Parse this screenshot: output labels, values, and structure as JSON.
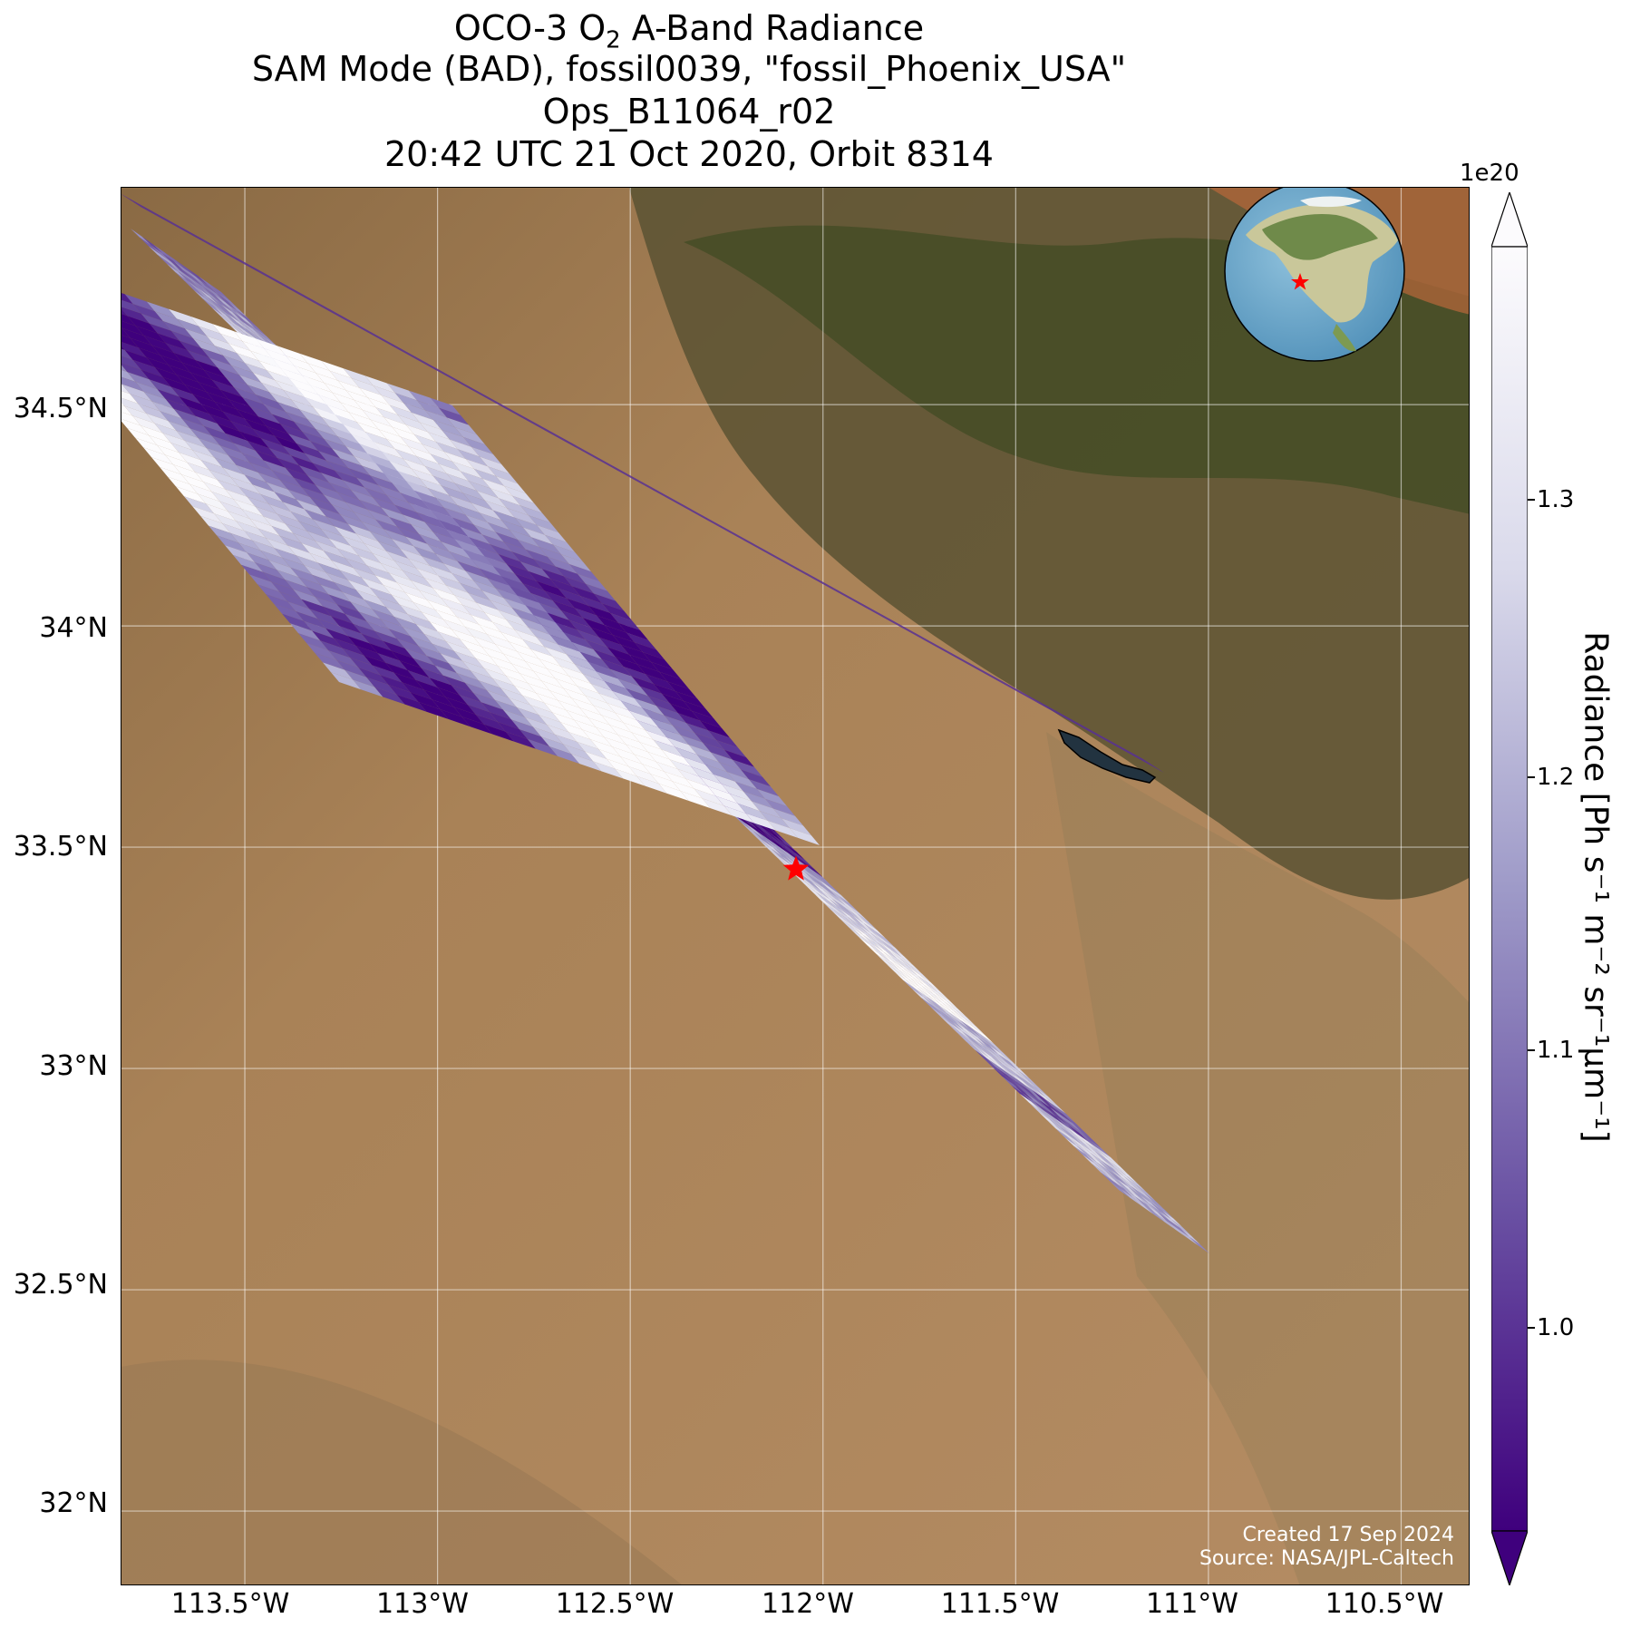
{
  "title": {
    "line1_prefix": "OCO-3 O",
    "line1_sub": "2",
    "line1_suffix": " A-Band Radiance",
    "line2": "SAM Mode (BAD), fossil0039, \"fossil_Phoenix_USA\"",
    "line3": "Ops_B11064_r02",
    "line4": "20:42 UTC 21 Oct 2020, Orbit 8314"
  },
  "map": {
    "lon_range": [
      -113.82,
      -110.32
    ],
    "lat_range": [
      31.83,
      34.99
    ],
    "y_ticks": [
      "34.5°N",
      "34°N",
      "33.5°N",
      "33°N",
      "32.5°N",
      "32°N"
    ],
    "y_tick_values": [
      34.5,
      34.0,
      33.5,
      33.0,
      32.5,
      32.0
    ],
    "x_ticks": [
      "113.5°W",
      "113°W",
      "112.5°W",
      "112°W",
      "111.5°W",
      "111°W",
      "110.5°W"
    ],
    "x_tick_values": [
      -113.5,
      -113.0,
      -112.5,
      -112.0,
      -111.5,
      -111.0,
      -110.5
    ],
    "gridlines": true,
    "basemap": "satellite imagery",
    "target_marker": {
      "symbol": "star",
      "color": "#ff0000",
      "lon": -112.07,
      "lat": 33.45
    },
    "inset": "globe-icon",
    "credit_line1": "Created 17 Sep 2024",
    "credit_line2": "Source: NASA/JPL-Caltech"
  },
  "colorbar": {
    "label": "Radiance [Ph s⁻¹ m⁻² sr⁻¹μm⁻¹]",
    "offset_text": "1e20",
    "ticks": [
      "1.0",
      "1.1",
      "1.2",
      "1.3"
    ],
    "tick_values": [
      1.0,
      1.1,
      1.2,
      1.3
    ],
    "vmin": 0.93,
    "vmax": 1.37,
    "colormap": "Purples_r",
    "color_low": "#3f007d",
    "color_high": "#fcfbfd",
    "extend": "both"
  }
}
